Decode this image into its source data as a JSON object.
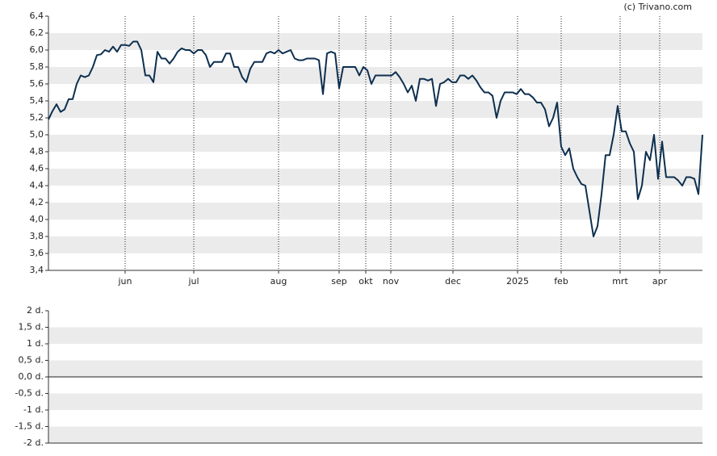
{
  "credit": "(c) Trivano.com",
  "chart_data": [
    {
      "type": "line",
      "color": "#0d2f4f",
      "values": [
        5.18,
        5.28,
        5.36,
        5.27,
        5.3,
        5.42,
        5.42,
        5.6,
        5.7,
        5.68,
        5.7,
        5.8,
        5.94,
        5.95,
        6.0,
        5.98,
        6.04,
        5.98,
        6.06,
        6.06,
        6.05,
        6.1,
        6.1,
        6.0,
        5.7,
        5.7,
        5.62,
        5.98,
        5.9,
        5.9,
        5.84,
        5.9,
        5.98,
        6.02,
        6.0,
        6.0,
        5.96,
        6.0,
        6.0,
        5.94,
        5.8,
        5.86,
        5.86,
        5.86,
        5.96,
        5.96,
        5.8,
        5.8,
        5.68,
        5.62,
        5.78,
        5.86,
        5.86,
        5.86,
        5.96,
        5.98,
        5.96,
        6.0,
        5.96,
        5.98,
        6.0,
        5.9,
        5.88,
        5.88,
        5.9,
        5.9,
        5.9,
        5.88,
        5.48,
        5.96,
        5.98,
        5.96,
        5.55,
        5.8,
        5.8,
        5.8,
        5.8,
        5.7,
        5.8,
        5.76,
        5.6,
        5.7,
        5.7,
        5.7,
        5.7,
        5.7,
        5.74,
        5.68,
        5.6,
        5.5,
        5.58,
        5.4,
        5.66,
        5.66,
        5.64,
        5.66,
        5.34,
        5.6,
        5.62,
        5.66,
        5.62,
        5.62,
        5.7,
        5.7,
        5.66,
        5.7,
        5.64,
        5.56,
        5.5,
        5.5,
        5.46,
        5.2,
        5.4,
        5.5,
        5.5,
        5.5,
        5.48,
        5.54,
        5.48,
        5.48,
        5.44,
        5.38,
        5.38,
        5.3,
        5.1,
        5.2,
        5.38,
        4.86,
        4.76,
        4.84,
        4.6,
        4.5,
        4.42,
        4.4,
        4.1,
        3.8,
        3.92,
        4.3,
        4.76,
        4.76,
        5.0,
        5.34,
        5.04,
        5.04,
        4.9,
        4.8,
        4.24,
        4.4,
        4.8,
        4.7,
        5.0,
        4.48,
        4.92,
        4.5,
        4.5,
        4.5,
        4.46,
        4.4,
        4.5,
        4.5,
        4.48,
        4.3,
        5.0
      ],
      "xlim": [
        0,
        162
      ],
      "xticks": [
        {
          "value": 19,
          "label": "jun"
        },
        {
          "value": 36,
          "label": "jul"
        },
        {
          "value": 57,
          "label": "aug"
        },
        {
          "value": 72,
          "label": "sep"
        },
        {
          "value": 78.6,
          "label": "okt"
        },
        {
          "value": 84.8,
          "label": "nov"
        },
        {
          "value": 100.2,
          "label": "dec"
        },
        {
          "value": 116.2,
          "label": "2025"
        },
        {
          "value": 127,
          "label": "feb"
        },
        {
          "value": 141.6,
          "label": "mrt"
        },
        {
          "value": 151.4,
          "label": "apr"
        }
      ],
      "ylim": [
        3.4,
        6.4
      ],
      "yticks": [
        {
          "value": 3.4,
          "label": "3,4"
        },
        {
          "value": 3.6,
          "label": "3,6"
        },
        {
          "value": 3.8,
          "label": "3,8"
        },
        {
          "value": 4.0,
          "label": "4,0"
        },
        {
          "value": 4.2,
          "label": "4,2"
        },
        {
          "value": 4.4,
          "label": "4,4"
        },
        {
          "value": 4.6,
          "label": "4,6"
        },
        {
          "value": 4.8,
          "label": "4,8"
        },
        {
          "value": 5.0,
          "label": "5,0"
        },
        {
          "value": 5.2,
          "label": "5,2"
        },
        {
          "value": 5.4,
          "label": "5,4"
        },
        {
          "value": 5.6,
          "label": "5,6"
        },
        {
          "value": 5.8,
          "label": "5,8"
        },
        {
          "value": 6.0,
          "label": "6,0"
        },
        {
          "value": 6.2,
          "label": "6,2"
        },
        {
          "value": 6.4,
          "label": "6,4"
        }
      ]
    },
    {
      "type": "empty",
      "ylim": [
        -2,
        2
      ],
      "yticks": [
        {
          "value": -2,
          "label": "-2 d."
        },
        {
          "value": -1.5,
          "label": "-1,5 d."
        },
        {
          "value": -1,
          "label": "-1 d."
        },
        {
          "value": -0.5,
          "label": "-0,5 d."
        },
        {
          "value": 0,
          "label": "0,0 d."
        },
        {
          "value": 0.5,
          "label": "0,5 d."
        },
        {
          "value": 1,
          "label": "1 d."
        },
        {
          "value": 1.5,
          "label": "1,5 d."
        },
        {
          "value": 2,
          "label": "2 d."
        }
      ]
    }
  ]
}
